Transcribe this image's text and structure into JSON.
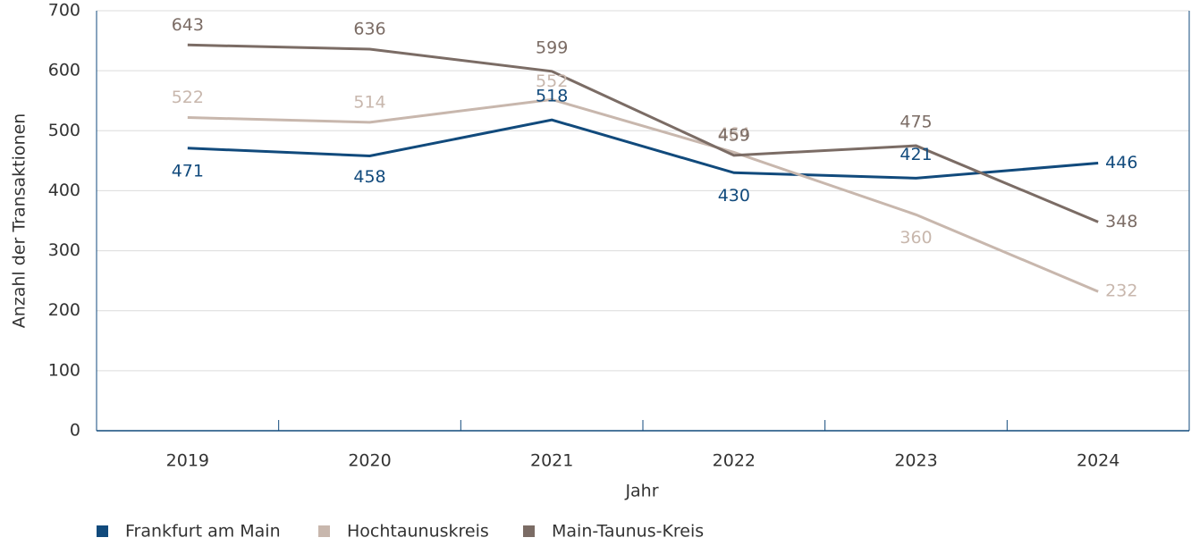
{
  "chart_data": {
    "type": "line",
    "x_label": "Jahr",
    "y_label": "Anzahl der Transaktionen",
    "categories": [
      "2019",
      "2020",
      "2021",
      "2022",
      "2023",
      "2024"
    ],
    "series": [
      {
        "name": "Frankfurt am Main",
        "color": "#114a7c",
        "values": [
          471,
          458,
          518,
          430,
          421,
          446
        ]
      },
      {
        "name": "Hochtaunuskreis",
        "color": "#c8b7ad",
        "values": [
          522,
          514,
          552,
          464,
          360,
          232
        ]
      },
      {
        "name": "Main-Taunus-Kreis",
        "color": "#7b6c65",
        "values": [
          643,
          636,
          599,
          459,
          475,
          348
        ]
      }
    ],
    "ylim": [
      0,
      700
    ],
    "yticks": [
      0,
      100,
      200,
      300,
      400,
      500,
      600,
      700
    ],
    "grid": true
  }
}
